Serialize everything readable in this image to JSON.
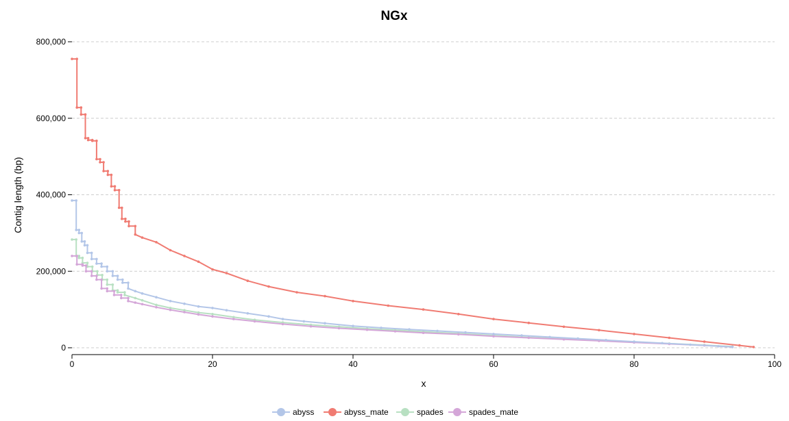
{
  "chart_data": {
    "type": "line",
    "title": "NGx",
    "xlabel": "x",
    "ylabel": "Contig length (bp)",
    "xlim": [
      0,
      100
    ],
    "ylim": [
      0,
      800000
    ],
    "x_ticks": [
      0,
      20,
      40,
      60,
      80,
      100
    ],
    "x_tick_labels": [
      "0",
      "20",
      "40",
      "60",
      "80",
      "100"
    ],
    "y_ticks": [
      0,
      200000,
      400000,
      600000,
      800000
    ],
    "y_tick_labels": [
      "0",
      "200,000",
      "400,000",
      "600,000",
      "800,000"
    ],
    "grid": "horizontal",
    "legend_position": "bottom",
    "series": [
      {
        "name": "abyss",
        "color": "#b3c6e8",
        "x": [
          0,
          0.6,
          0.6,
          1.0,
          1.0,
          1.4,
          1.4,
          1.8,
          1.8,
          2.2,
          2.2,
          2.8,
          2.8,
          3.5,
          3.5,
          4.2,
          4.2,
          5.0,
          5.0,
          5.8,
          5.8,
          6.5,
          6.5,
          7.2,
          7.2,
          8.0,
          8.0,
          9.0,
          10,
          12,
          14,
          16,
          18,
          20,
          22,
          25,
          28,
          30,
          33,
          36,
          40,
          44,
          48,
          52,
          56,
          60,
          64,
          68,
          72,
          76,
          80,
          84,
          88,
          92,
          94
        ],
        "y": [
          385000,
          385000,
          308000,
          308000,
          300000,
          300000,
          278000,
          278000,
          268000,
          268000,
          248000,
          248000,
          232000,
          232000,
          220000,
          220000,
          212000,
          212000,
          200000,
          200000,
          188000,
          188000,
          178000,
          178000,
          170000,
          170000,
          155000,
          148000,
          142000,
          132000,
          122000,
          115000,
          108000,
          104000,
          98000,
          90000,
          82000,
          75000,
          69000,
          64000,
          57000,
          52000,
          48000,
          44000,
          40000,
          36000,
          32000,
          28000,
          24000,
          20000,
          16000,
          12000,
          8000,
          4000,
          2000
        ]
      },
      {
        "name": "abyss_mate",
        "color": "#f07b72",
        "x": [
          0,
          0.7,
          0.7,
          1.3,
          1.3,
          1.9,
          1.9,
          2.3,
          2.3,
          2.9,
          2.9,
          3.5,
          3.5,
          4.0,
          4.0,
          4.5,
          4.5,
          5.1,
          5.1,
          5.6,
          5.6,
          6.1,
          6.1,
          6.7,
          6.7,
          7.1,
          7.1,
          7.6,
          7.6,
          8.1,
          8.1,
          9.0,
          9.0,
          10,
          12,
          14,
          16,
          18,
          20,
          22,
          25,
          28,
          32,
          36,
          40,
          45,
          50,
          55,
          60,
          65,
          70,
          75,
          80,
          85,
          90,
          95,
          97
        ],
        "y": [
          755000,
          755000,
          628000,
          628000,
          610000,
          610000,
          548000,
          548000,
          543000,
          543000,
          541000,
          541000,
          493000,
          493000,
          485000,
          485000,
          462000,
          462000,
          452000,
          452000,
          422000,
          422000,
          412000,
          412000,
          366000,
          366000,
          337000,
          337000,
          330000,
          330000,
          318000,
          318000,
          296000,
          288000,
          276000,
          255000,
          240000,
          225000,
          205000,
          195000,
          175000,
          160000,
          145000,
          135000,
          122000,
          110000,
          100000,
          88000,
          75000,
          65000,
          55000,
          46000,
          36000,
          26000,
          16000,
          6000,
          2000
        ]
      },
      {
        "name": "spades",
        "color": "#b8e0c2",
        "x": [
          0,
          0.6,
          0.6,
          1.0,
          1.0,
          1.5,
          1.5,
          2.2,
          2.2,
          2.9,
          2.9,
          3.6,
          3.6,
          4.3,
          4.3,
          5.0,
          5.0,
          5.8,
          5.8,
          6.5,
          6.5,
          7.5,
          7.5,
          9.0,
          10,
          12,
          14,
          16,
          18,
          20,
          23,
          26,
          30,
          34,
          38,
          42,
          46,
          50,
          55,
          60,
          65,
          70,
          75,
          80,
          85,
          90,
          94
        ],
        "y": [
          283000,
          283000,
          240000,
          240000,
          235000,
          235000,
          222000,
          222000,
          212000,
          212000,
          200000,
          200000,
          190000,
          190000,
          178000,
          178000,
          165000,
          165000,
          150000,
          150000,
          145000,
          145000,
          138000,
          130000,
          124000,
          112000,
          104000,
          98000,
          92000,
          88000,
          80000,
          73000,
          66000,
          60000,
          55000,
          50000,
          46000,
          42000,
          37000,
          32000,
          27000,
          23000,
          19000,
          15000,
          11000,
          7000,
          3000
        ]
      },
      {
        "name": "spades_mate",
        "color": "#d4a6d8",
        "x": [
          0,
          0.7,
          0.7,
          1.5,
          1.5,
          2.0,
          2.0,
          2.8,
          2.8,
          3.5,
          3.5,
          4.2,
          4.2,
          5.0,
          5.0,
          6.0,
          6.0,
          7.0,
          7.0,
          8.0,
          8.0,
          9.0,
          10,
          12,
          14,
          16,
          18,
          20,
          23,
          26,
          30,
          34,
          38,
          42,
          46,
          50,
          55,
          60,
          65,
          70,
          75,
          80,
          85,
          90,
          94
        ],
        "y": [
          240000,
          240000,
          218000,
          218000,
          215000,
          215000,
          200000,
          200000,
          188000,
          188000,
          178000,
          178000,
          155000,
          155000,
          148000,
          148000,
          138000,
          138000,
          130000,
          130000,
          122000,
          118000,
          114000,
          106000,
          99000,
          93000,
          87000,
          82000,
          75000,
          69000,
          62000,
          56000,
          51000,
          47000,
          43000,
          39000,
          35000,
          30000,
          26000,
          22000,
          18000,
          14000,
          10000,
          6000,
          2000
        ]
      }
    ]
  }
}
